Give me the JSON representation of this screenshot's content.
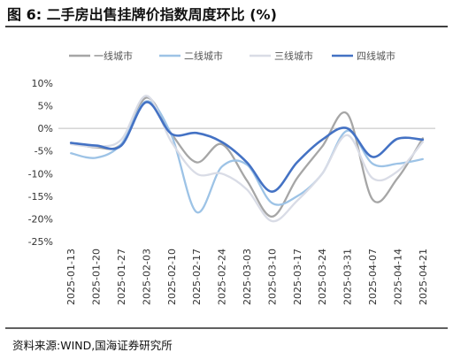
{
  "chart_data": {
    "type": "line",
    "title": "图 6:  二手房出售挂牌价指数周度环比 (%)",
    "source": "资料来源:WIND,国海证券研究所",
    "legend_position": "top",
    "grid": false,
    "ylim": [
      -25,
      10
    ],
    "y_step": 5,
    "y_ticks": [
      "10%",
      "5%",
      "0%",
      "-5%",
      "-10%",
      "-15%",
      "-20%",
      "-25%"
    ],
    "x": [
      "2025-01-13",
      "2025-01-20",
      "2025-01-27",
      "2025-02-03",
      "2025-02-10",
      "2025-02-17",
      "2025-02-24",
      "2025-03-03",
      "2025-03-10",
      "2025-03-17",
      "2025-03-24",
      "2025-03-31",
      "2025-04-07",
      "2025-04-14",
      "2025-04-21"
    ],
    "series": [
      {
        "name": "一线城市",
        "color": "#a6a6a6",
        "values": [
          -3.2,
          -4.2,
          -3.5,
          6.8,
          -1.2,
          -7.5,
          -3.5,
          -11.5,
          -19.5,
          -11.0,
          -4.0,
          3.2,
          -15.7,
          -11.0,
          -2.2
        ]
      },
      {
        "name": "二线城市",
        "color": "#9dc3e6",
        "values": [
          -5.5,
          -6.5,
          -3.5,
          6.0,
          -1.5,
          -18.5,
          -8.5,
          -8.0,
          -16.5,
          -15.0,
          -10.0,
          -0.5,
          -7.8,
          -7.8,
          -6.8
        ]
      },
      {
        "name": "三线城市",
        "color": "#d9dce6",
        "values": [
          -3.5,
          -4.0,
          -2.5,
          7.2,
          -3.0,
          -10.0,
          -10.0,
          -13.5,
          -20.5,
          -16.0,
          -10.0,
          -1.5,
          -11.0,
          -9.5,
          -3.0
        ]
      },
      {
        "name": "四线城市",
        "color": "#4472c4",
        "values": [
          -3.2,
          -3.8,
          -3.8,
          5.8,
          -1.2,
          -1.0,
          -3.0,
          -7.5,
          -14.0,
          -7.5,
          -2.5,
          0.0,
          -6.3,
          -2.3,
          -2.5
        ]
      }
    ]
  }
}
